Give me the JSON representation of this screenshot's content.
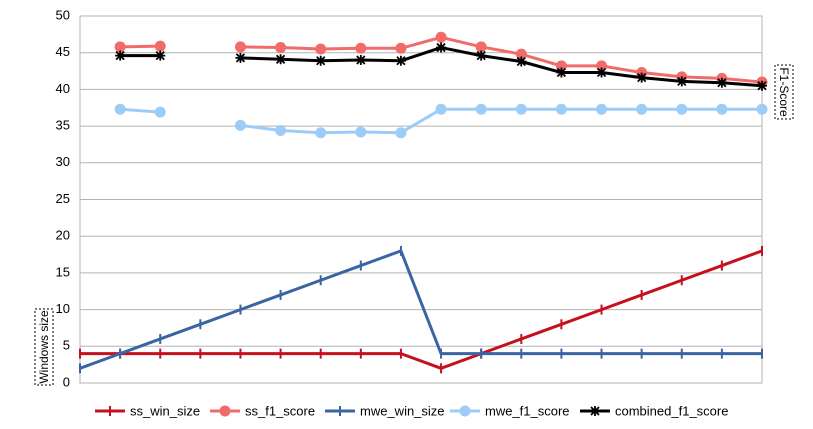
{
  "chart_data": {
    "type": "line",
    "y_label": "Windows size",
    "y2_label": "F1-Score",
    "categories": [
      null,
      null,
      null,
      null,
      null,
      null,
      null,
      null,
      null,
      null,
      null,
      null,
      null,
      null,
      null,
      null,
      null,
      null
    ],
    "ylim": [
      0,
      50
    ],
    "yticks": [
      0,
      5,
      10,
      15,
      20,
      25,
      30,
      35,
      40,
      45,
      50
    ],
    "grid": true,
    "legend": "bottom",
    "series": [
      {
        "name": "ss_win_size",
        "color": "#c5101e",
        "marker": "plus",
        "values": [
          4,
          4,
          4,
          4,
          4,
          4,
          4,
          4,
          4,
          2,
          4,
          6,
          8,
          10,
          12,
          14,
          16,
          18
        ]
      },
      {
        "name": "ss_f1_score",
        "color": "#f26b6b",
        "marker": "circle",
        "values": [
          null,
          45.8,
          45.9,
          null,
          45.8,
          45.7,
          45.5,
          45.6,
          45.6,
          47.1,
          45.8,
          44.8,
          43.2,
          43.2,
          42.3,
          41.7,
          41.5,
          41.0
        ]
      },
      {
        "name": "mwe_win_size",
        "color": "#3a65a2",
        "marker": "plus",
        "values": [
          2,
          4,
          6,
          8,
          10,
          12,
          14,
          16,
          18,
          4,
          4,
          4,
          4,
          4,
          4,
          4,
          4,
          4
        ]
      },
      {
        "name": "mwe_f1_score",
        "color": "#9dcdf7",
        "marker": "circle",
        "values": [
          null,
          37.3,
          36.9,
          null,
          35.1,
          34.4,
          34.1,
          34.2,
          34.1,
          37.3,
          37.3,
          37.3,
          37.3,
          37.3,
          37.3,
          37.3,
          37.3,
          37.3
        ]
      },
      {
        "name": "combined_f1_score",
        "color": "#000000",
        "marker": "star",
        "values": [
          null,
          44.6,
          44.6,
          null,
          44.3,
          44.1,
          43.9,
          44.0,
          43.9,
          45.7,
          44.6,
          43.8,
          42.3,
          42.3,
          41.6,
          41.1,
          40.9,
          40.5
        ]
      }
    ]
  }
}
